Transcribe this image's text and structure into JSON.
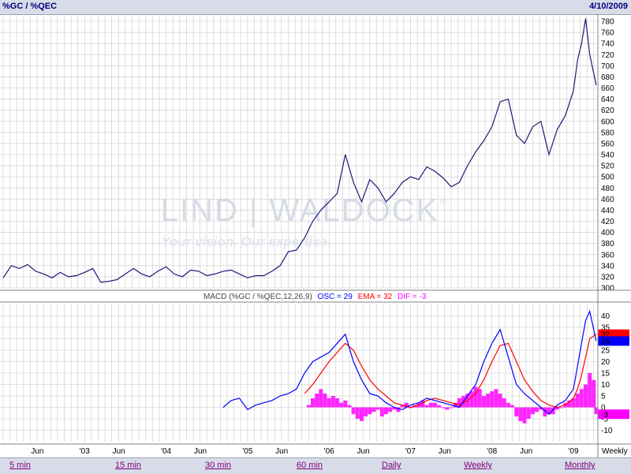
{
  "header": {
    "symbol": "%GC / %QEC",
    "date": "4/10/2009"
  },
  "watermark": {
    "brand": "LIND | WALDOCK",
    "registered": "®",
    "tagline": "Your vision. Our expertise."
  },
  "macd_label": {
    "prefix": "MACD (%GC / %QEC,12,26,9)",
    "osc": "OSC = 29",
    "ema": "EMA = 32",
    "dif": "DIF = -3"
  },
  "colors": {
    "price": "#1a1a7a",
    "osc": "#0000ff",
    "ema": "#ff0000",
    "dif": "#ff00ff",
    "grid": "#c8c8c8"
  },
  "timeframes": [
    {
      "label": "5 min"
    },
    {
      "label": "15 min"
    },
    {
      "label": "30 min"
    },
    {
      "label": "60 min"
    },
    {
      "label": "Daily"
    },
    {
      "label": "Weekly"
    },
    {
      "label": "Monthly"
    }
  ],
  "chart_data": [
    {
      "type": "line",
      "title": "%GC / %QEC",
      "ylim": [
        300,
        790
      ],
      "y_ticks": [
        300,
        320,
        340,
        360,
        380,
        400,
        420,
        440,
        460,
        480,
        500,
        520,
        540,
        560,
        580,
        600,
        620,
        640,
        660,
        680,
        700,
        720,
        740,
        760,
        780
      ],
      "x_ticks": [
        {
          "label": "Jun",
          "x": 2002.42
        },
        {
          "label": "'03",
          "x": 2003.0
        },
        {
          "label": "Jun",
          "x": 2003.42
        },
        {
          "label": "'04",
          "x": 2004.0
        },
        {
          "label": "Jun",
          "x": 2004.42
        },
        {
          "label": "'05",
          "x": 2005.0
        },
        {
          "label": "Jun",
          "x": 2005.42
        },
        {
          "label": "'06",
          "x": 2006.0
        },
        {
          "label": "Jun",
          "x": 2006.42
        },
        {
          "label": "'07",
          "x": 2007.0
        },
        {
          "label": "Jun",
          "x": 2007.42
        },
        {
          "label": "'08",
          "x": 2008.0
        },
        {
          "label": "Jun",
          "x": 2008.42
        },
        {
          "label": "'09",
          "x": 2009.0
        }
      ],
      "x_unit_label": "Weekly",
      "series": [
        {
          "x": [
            2002.0,
            2002.1,
            2002.2,
            2002.3,
            2002.4,
            2002.5,
            2002.6,
            2002.7,
            2002.8,
            2002.9,
            2003.0,
            2003.1,
            2003.2,
            2003.3,
            2003.4,
            2003.5,
            2003.6,
            2003.7,
            2003.8,
            2003.9,
            2004.0,
            2004.1,
            2004.2,
            2004.3,
            2004.4,
            2004.5,
            2004.6,
            2004.7,
            2004.8,
            2004.9,
            2005.0,
            2005.1,
            2005.2,
            2005.3,
            2005.4,
            2005.5,
            2005.6,
            2005.7,
            2005.8,
            2005.9,
            2006.0,
            2006.1,
            2006.2,
            2006.3,
            2006.4,
            2006.5,
            2006.6,
            2006.7,
            2006.8,
            2006.9,
            2007.0,
            2007.1,
            2007.2,
            2007.3,
            2007.4,
            2007.5,
            2007.6,
            2007.7,
            2007.8,
            2007.9,
            2008.0,
            2008.1,
            2008.2,
            2008.3,
            2008.4,
            2008.5,
            2008.6,
            2008.7,
            2008.8,
            2008.9,
            2009.0,
            2009.05,
            2009.1,
            2009.15,
            2009.2,
            2009.28
          ],
          "values": [
            318,
            340,
            335,
            342,
            330,
            325,
            318,
            328,
            320,
            322,
            328,
            335,
            310,
            312,
            315,
            325,
            335,
            325,
            320,
            330,
            338,
            325,
            320,
            332,
            330,
            322,
            325,
            330,
            332,
            325,
            318,
            322,
            322,
            330,
            340,
            365,
            368,
            390,
            420,
            440,
            455,
            470,
            540,
            490,
            455,
            495,
            480,
            455,
            470,
            490,
            500,
            495,
            518,
            510,
            498,
            482,
            490,
            520,
            545,
            565,
            590,
            635,
            640,
            575,
            560,
            590,
            600,
            540,
            585,
            610,
            655,
            710,
            740,
            785,
            720,
            665
          ]
        }
      ]
    },
    {
      "type": "line",
      "title": "MACD (%GC / %QEC,12,26,9)",
      "ylim": [
        -15,
        45
      ],
      "y_ticks": [
        -10,
        -5,
        0,
        5,
        10,
        15,
        20,
        25,
        30,
        35,
        40
      ],
      "osc": {
        "x": [
          2004.7,
          2004.8,
          2004.9,
          2005.0,
          2005.1,
          2005.2,
          2005.3,
          2005.4,
          2005.5,
          2005.6,
          2005.7,
          2005.8,
          2005.9,
          2006.0,
          2006.1,
          2006.2,
          2006.3,
          2006.4,
          2006.5,
          2006.6,
          2006.7,
          2006.8,
          2006.9,
          2007.0,
          2007.1,
          2007.2,
          2007.3,
          2007.4,
          2007.5,
          2007.6,
          2007.7,
          2007.8,
          2007.9,
          2008.0,
          2008.1,
          2008.2,
          2008.3,
          2008.4,
          2008.5,
          2008.6,
          2008.7,
          2008.8,
          2008.9,
          2009.0,
          2009.05,
          2009.1,
          2009.15,
          2009.2,
          2009.28
        ],
        "values": [
          0,
          3,
          4,
          -1,
          1,
          2,
          3,
          5,
          6,
          8,
          15,
          20,
          22,
          24,
          28,
          32,
          20,
          12,
          6,
          5,
          2,
          0,
          -1,
          1,
          2,
          4,
          3,
          2,
          1,
          0,
          5,
          10,
          20,
          28,
          34,
          22,
          10,
          6,
          3,
          0,
          -3,
          1,
          3,
          8,
          18,
          28,
          38,
          42,
          29
        ]
      },
      "ema": {
        "x": [
          2005.7,
          2005.8,
          2005.9,
          2006.0,
          2006.1,
          2006.2,
          2006.3,
          2006.4,
          2006.5,
          2006.6,
          2006.7,
          2006.8,
          2006.9,
          2007.0,
          2007.1,
          2007.2,
          2007.3,
          2007.4,
          2007.5,
          2007.6,
          2007.7,
          2007.8,
          2007.9,
          2008.0,
          2008.1,
          2008.2,
          2008.3,
          2008.4,
          2008.5,
          2008.6,
          2008.7,
          2008.8,
          2008.9,
          2009.0,
          2009.05,
          2009.1,
          2009.15,
          2009.2,
          2009.28
        ],
        "values": [
          6,
          10,
          15,
          20,
          24,
          28,
          25,
          18,
          12,
          8,
          5,
          2,
          1,
          0,
          1,
          3,
          4,
          3,
          2,
          1,
          3,
          6,
          12,
          20,
          27,
          28,
          20,
          12,
          7,
          3,
          1,
          0,
          1,
          4,
          8,
          14,
          22,
          30,
          32
        ]
      },
      "dif": {
        "x": [
          2005.75,
          2005.8,
          2005.85,
          2005.9,
          2005.95,
          2006.0,
          2006.05,
          2006.1,
          2006.15,
          2006.2,
          2006.25,
          2006.3,
          2006.35,
          2006.4,
          2006.45,
          2006.5,
          2006.55,
          2006.6,
          2006.65,
          2006.7,
          2006.75,
          2006.8,
          2006.85,
          2006.9,
          2006.95,
          2007.0,
          2007.05,
          2007.1,
          2007.15,
          2007.2,
          2007.25,
          2007.3,
          2007.35,
          2007.4,
          2007.45,
          2007.5,
          2007.55,
          2007.6,
          2007.65,
          2007.7,
          2007.75,
          2007.8,
          2007.85,
          2007.9,
          2007.95,
          2008.0,
          2008.05,
          2008.1,
          2008.15,
          2008.2,
          2008.25,
          2008.3,
          2008.35,
          2008.4,
          2008.45,
          2008.5,
          2008.55,
          2008.6,
          2008.65,
          2008.7,
          2008.75,
          2008.8,
          2008.85,
          2008.9,
          2008.95,
          2009.0,
          2009.05,
          2009.1,
          2009.15,
          2009.2,
          2009.25,
          2009.28
        ],
        "values": [
          1,
          4,
          6,
          8,
          6,
          4,
          5,
          4,
          2,
          3,
          1,
          -3,
          -5,
          -6,
          -4,
          -3,
          -2,
          -1,
          -4,
          -3,
          -2,
          -1,
          -2,
          1,
          2,
          0,
          1,
          2,
          3,
          1,
          2,
          2,
          1,
          0,
          -1,
          0,
          2,
          4,
          5,
          6,
          7,
          9,
          8,
          5,
          6,
          7,
          8,
          6,
          4,
          2,
          1,
          -4,
          -6,
          -7,
          -5,
          -3,
          -2,
          -1,
          -4,
          -3,
          -3,
          -1,
          0,
          2,
          3,
          4,
          6,
          8,
          10,
          15,
          12,
          -3
        ]
      }
    }
  ]
}
